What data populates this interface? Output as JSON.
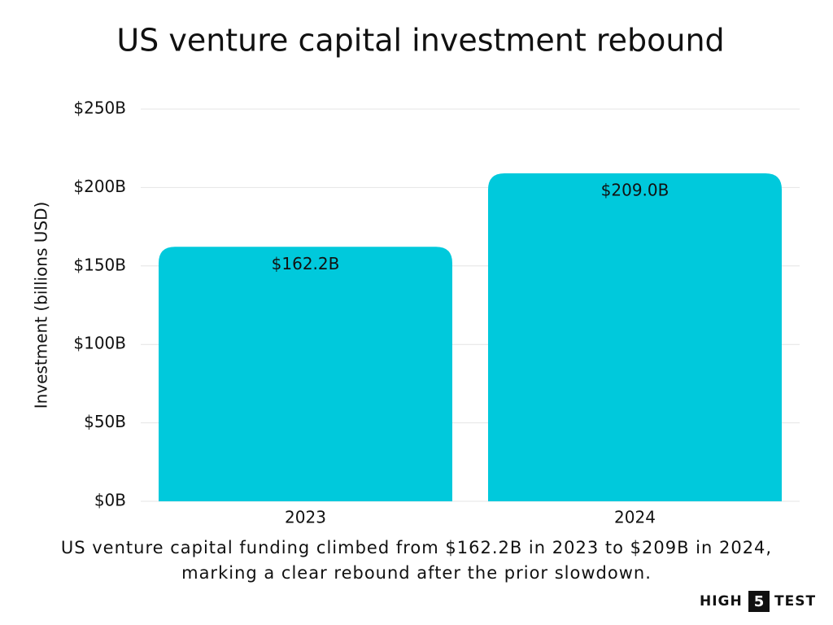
{
  "chart_data": {
    "type": "bar",
    "title": "US venture capital investment rebound",
    "y_label": "Investment (billions USD)",
    "categories": [
      "2023",
      "2024"
    ],
    "values": [
      162.2,
      209.0
    ],
    "value_labels": [
      "$162.2B",
      "$209.0B"
    ],
    "color": "#00c9dc",
    "ylim": [
      0,
      250
    ],
    "yticks": [
      {
        "value": 0,
        "label": "$0B"
      },
      {
        "value": 50,
        "label": "$50B"
      },
      {
        "value": 100,
        "label": "$100B"
      },
      {
        "value": 150,
        "label": "$150B"
      },
      {
        "value": 200,
        "label": "$200B"
      },
      {
        "value": 250,
        "label": "$250B"
      }
    ],
    "grid": true,
    "caption": "US venture capital funding climbed from $162.2B in 2023 to $209B in 2024, marking a clear rebound after the prior slowdown.",
    "logo": [
      "HIGH",
      "5",
      "TEST"
    ]
  }
}
